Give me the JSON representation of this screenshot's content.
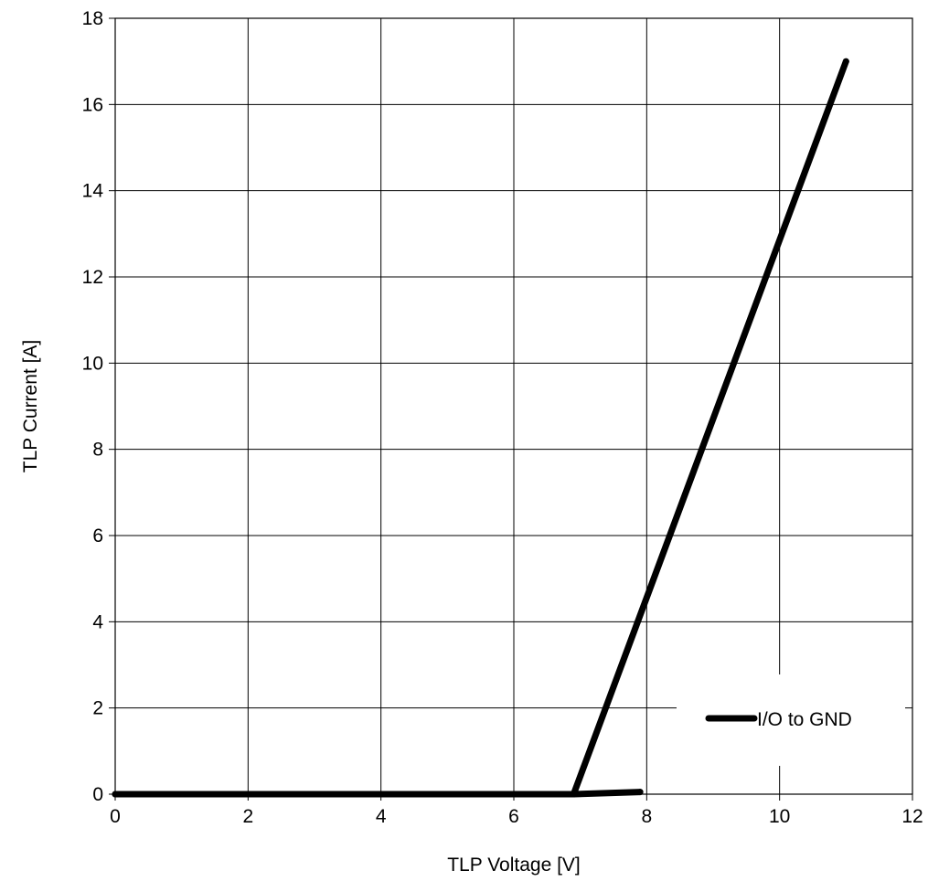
{
  "chart_data": {
    "type": "line",
    "title": "",
    "xlabel": "TLP Voltage [V]",
    "ylabel": "TLP Current [A]",
    "xlim": [
      0,
      12
    ],
    "ylim": [
      0,
      18
    ],
    "x_ticks": [
      0,
      2,
      4,
      6,
      8,
      10,
      12
    ],
    "y_ticks": [
      0,
      2,
      4,
      6,
      8,
      10,
      12,
      14,
      16,
      18
    ],
    "grid": true,
    "legend_position": "bottom-right",
    "series": [
      {
        "name": "I/O to GND",
        "color": "#000000",
        "points": [
          {
            "x": 0,
            "y": 0.0
          },
          {
            "x": 6.9,
            "y": 0.0
          },
          {
            "x": 7.9,
            "y": 0.05
          },
          {
            "x": 6.9,
            "y": 0.0
          },
          {
            "x": 11.0,
            "y": 17.0
          }
        ]
      }
    ]
  }
}
